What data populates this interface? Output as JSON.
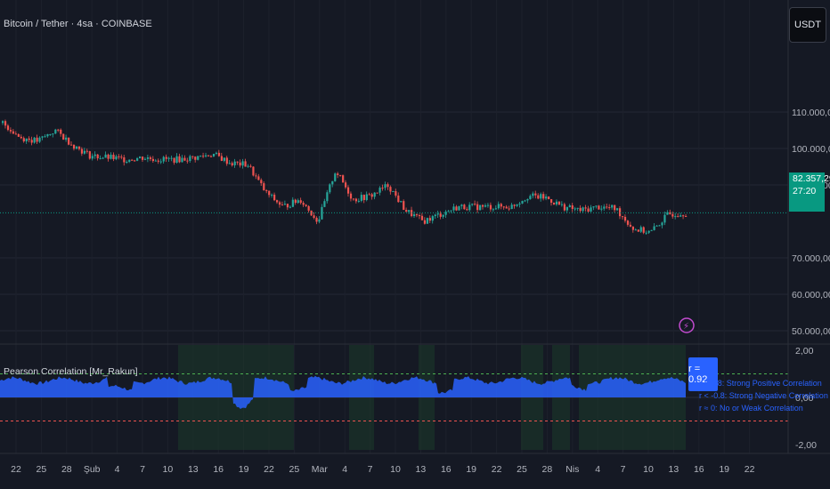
{
  "header": {
    "symbol_title": "Bitcoin / Tether · 4sa · COINBASE",
    "currency_button": "USDT"
  },
  "price_axis": {
    "labels": [
      "110.000,00",
      "100.000,00",
      "90.000,00",
      "70.000,00",
      "60.000,00",
      "50.000,00"
    ],
    "values": [
      110000,
      100000,
      90000,
      70000,
      60000,
      50000
    ],
    "current_price": "82.357,29",
    "countdown": "27:20"
  },
  "indicator": {
    "title": "Pearson Correlation [Mr_Rakun]",
    "axis_labels": [
      "2,00",
      "0,00",
      "-2,00"
    ],
    "axis_values": [
      2,
      0,
      -2
    ],
    "badge": "r = 0.92",
    "legend": [
      "r > 0.8: Strong Positive Correlation",
      "r < -0.8: Strong Negative Correlation",
      "r ≈ 0: No or Weak Correlation"
    ]
  },
  "time_axis": [
    "22",
    "25",
    "28",
    "Şub",
    "4",
    "7",
    "10",
    "13",
    "16",
    "19",
    "22",
    "25",
    "Mar",
    "4",
    "7",
    "10",
    "13",
    "16",
    "19",
    "22",
    "25",
    "28",
    "Nis",
    "4",
    "7",
    "10",
    "13",
    "16",
    "19",
    "22"
  ],
  "colors": {
    "up": "#26a69a",
    "down": "#ef5350",
    "fill": "#2962ff",
    "band": "#1c3a2a",
    "accent": "#089981"
  },
  "chart_data": {
    "type": "candlestick",
    "title": "Bitcoin / Tether · 4sa · COINBASE",
    "ylim": [
      50000,
      115000
    ],
    "close_anchors": [
      107000,
      103000,
      102000,
      105000,
      101000,
      98000,
      97500,
      97000,
      97500,
      97000,
      97000,
      97500,
      98500,
      96000,
      95500,
      88000,
      84000,
      86000,
      80000,
      94000,
      86000,
      87000,
      90000,
      83000,
      80000,
      82000,
      84000,
      84000,
      84000,
      84000,
      87000,
      86500,
      84000,
      83000,
      84000,
      83500,
      78000,
      77000,
      82000,
      82357
    ],
    "correlation_ylim": [
      -2.5,
      2.5
    ]
  }
}
